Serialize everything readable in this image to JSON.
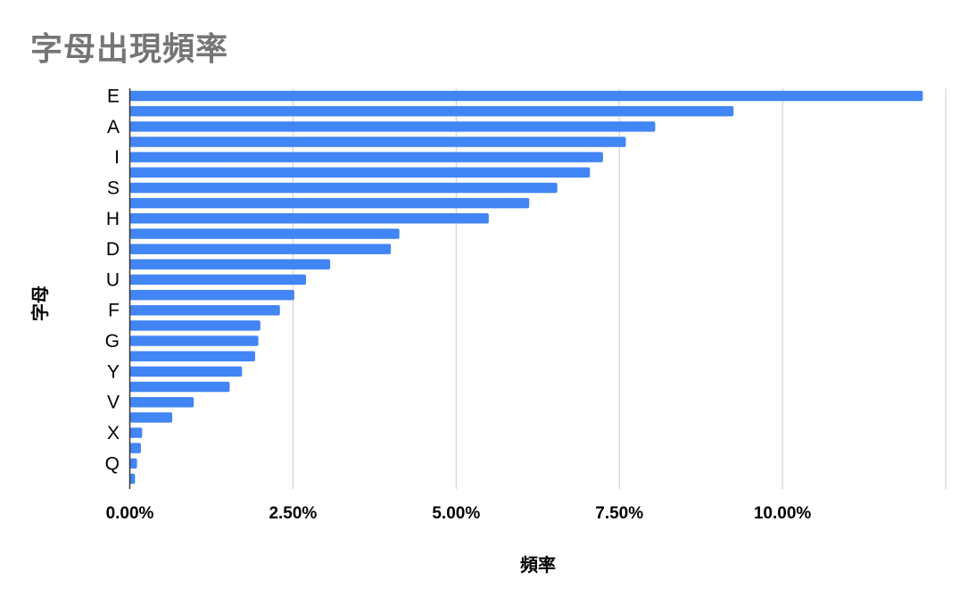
{
  "chart_data": {
    "type": "bar",
    "orientation": "horizontal",
    "title": "字母出現頻率",
    "xlabel": "頻率",
    "ylabel": "字母",
    "xlim": [
      0,
      12.5
    ],
    "x_ticks": [
      "0.00%",
      "2.50%",
      "5.00%",
      "7.50%",
      "10.00%"
    ],
    "x_tick_values": [
      0,
      2.5,
      5,
      7.5,
      10
    ],
    "grid": true,
    "legend": "none",
    "bar_color": "#4285f4",
    "grid_color": "#cccccc",
    "series": [
      {
        "values": [
          12.15,
          9.25,
          8.05,
          7.6,
          7.25,
          7.05,
          6.55,
          6.12,
          5.5,
          4.13,
          4.0,
          3.07,
          2.7,
          2.52,
          2.3,
          2.0,
          1.97,
          1.92,
          1.72,
          1.53,
          0.98,
          0.65,
          0.19,
          0.17,
          0.11,
          0.08
        ]
      }
    ],
    "categories": [
      "E",
      "",
      "A",
      "",
      "I",
      "",
      "S",
      "",
      "H",
      "",
      "D",
      "",
      "U",
      "",
      "F",
      "",
      "G",
      "",
      "Y",
      "",
      "V",
      "",
      "X",
      "",
      "Q",
      ""
    ]
  }
}
